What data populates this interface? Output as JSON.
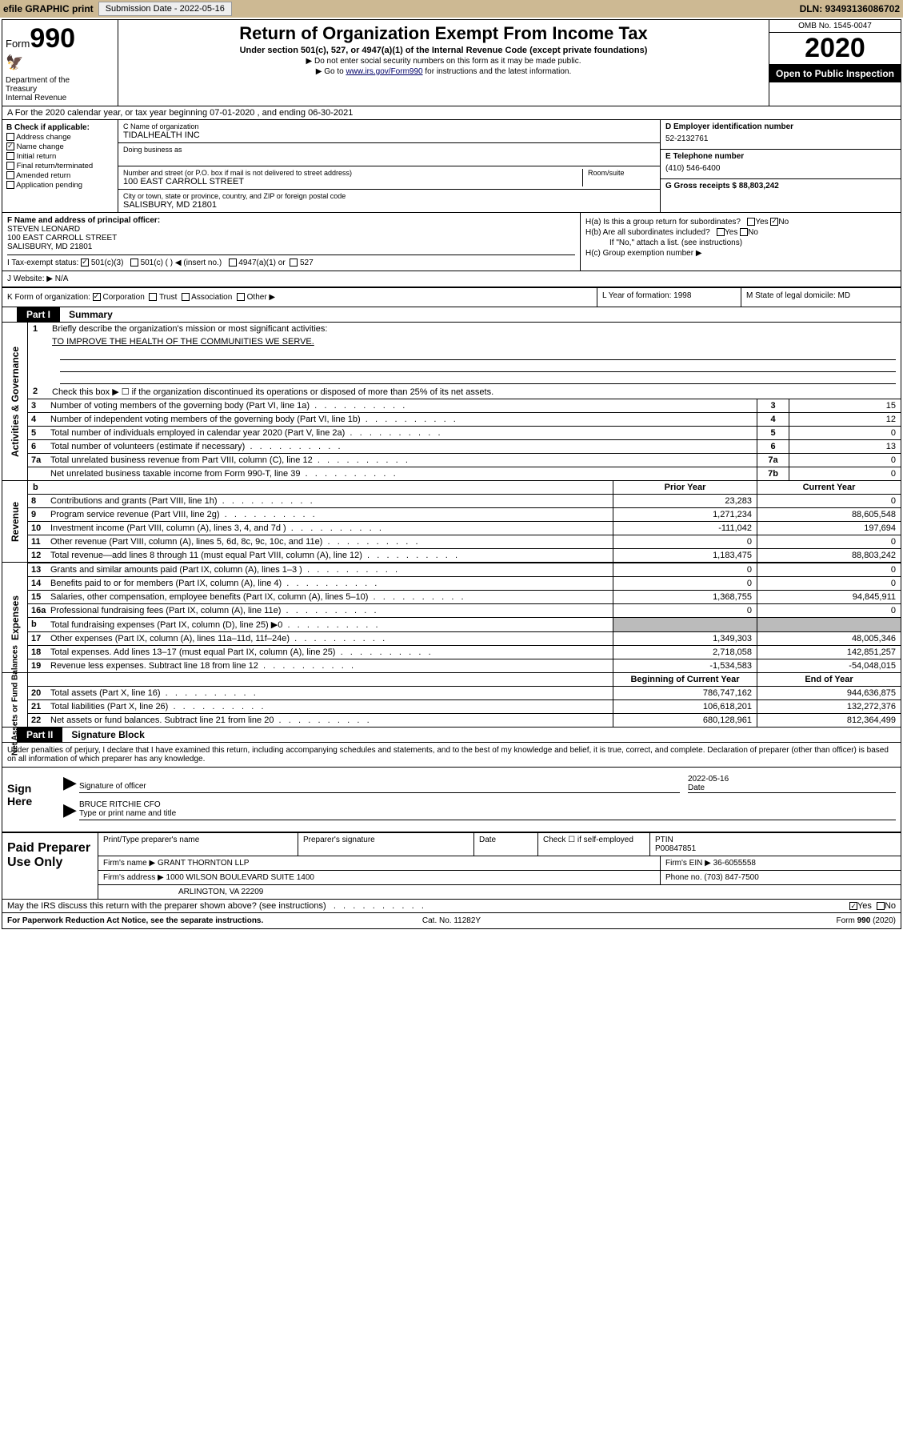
{
  "topbar": {
    "efile": "efile GRAPHIC print",
    "subdate_label": "Submission Date - 2022-05-16",
    "dln_label": "DLN: 93493136086702"
  },
  "header": {
    "form_word": "Form",
    "form_num": "990",
    "dept": "Department of the Treasury\nInternal Revenue",
    "title": "Return of Organization Exempt From Income Tax",
    "subtitle": "Under section 501(c), 527, or 4947(a)(1) of the Internal Revenue Code (except private foundations)",
    "line1": "▶ Do not enter social security numbers on this form as it may be made public.",
    "line2_pre": "▶ Go to ",
    "line2_link": "www.irs.gov/Form990",
    "line2_post": " for instructions and the latest information.",
    "omb": "OMB No. 1545-0047",
    "year": "2020",
    "pub": "Open to Public Inspection"
  },
  "rowA": "A   For the 2020 calendar year, or tax year beginning 07-01-2020   , and ending 06-30-2021",
  "colB": {
    "hdr": "B Check if applicable:",
    "items": [
      "Address change",
      "Name change",
      "Initial return",
      "Final return/terminated",
      "Amended return",
      "Application pending"
    ],
    "checked_idx": 1
  },
  "colC": {
    "name_lbl": "C Name of organization",
    "name_val": "TIDALHEALTH INC",
    "dba_lbl": "Doing business as",
    "addr_lbl": "Number and street (or P.O. box if mail is not delivered to street address)",
    "room_lbl": "Room/suite",
    "addr_val": "100 EAST CARROLL STREET",
    "city_lbl": "City or town, state or province, country, and ZIP or foreign postal code",
    "city_val": "SALISBURY, MD  21801"
  },
  "colD": {
    "ein_lbl": "D Employer identification number",
    "ein_val": "52-2132761",
    "tel_lbl": "E Telephone number",
    "tel_val": "(410) 546-6400",
    "gross_lbl": "G Gross receipts $ 88,803,242"
  },
  "secF": {
    "lbl": "F Name and address of principal officer:",
    "name": "STEVEN LEONARD",
    "addr1": "100 EAST CARROLL STREET",
    "addr2": "SALISBURY, MD  21801"
  },
  "secH": {
    "ha": "H(a)  Is this a group return for subordinates?",
    "hb": "H(b)  Are all subordinates included?",
    "hb_note": "If \"No,\" attach a list. (see instructions)",
    "hc": "H(c)  Group exemption number ▶"
  },
  "rowI": "I   Tax-exempt status:",
  "rowI_opts": [
    "501(c)(3)",
    "501(c) (  ) ◀ (insert no.)",
    "4947(a)(1) or",
    "527"
  ],
  "rowJ": "J   Website: ▶  N/A",
  "rowK": "K Form of organization:",
  "rowK_opts": [
    "Corporation",
    "Trust",
    "Association",
    "Other ▶"
  ],
  "rowL_lbl": "L Year of formation:",
  "rowL_val": "1998",
  "rowM_lbl": "M State of legal domicile:",
  "rowM_val": "MD",
  "part1": {
    "hdr": "Part I",
    "title": "Summary",
    "q1_lbl": "Briefly describe the organization's mission or most significant activities:",
    "q1_val": "TO IMPROVE THE HEALTH OF THE COMMUNITIES WE SERVE.",
    "q2": "Check this box ▶ ☐  if the organization discontinued its operations or disposed of more than 25% of its net assets.",
    "lines_short": [
      {
        "n": "3",
        "t": "Number of voting members of the governing body (Part VI, line 1a)",
        "box": "3",
        "v": "15"
      },
      {
        "n": "4",
        "t": "Number of independent voting members of the governing body (Part VI, line 1b)",
        "box": "4",
        "v": "12"
      },
      {
        "n": "5",
        "t": "Total number of individuals employed in calendar year 2020 (Part V, line 2a)",
        "box": "5",
        "v": "0"
      },
      {
        "n": "6",
        "t": "Total number of volunteers (estimate if necessary)",
        "box": "6",
        "v": "13"
      },
      {
        "n": "7a",
        "t": "Total unrelated business revenue from Part VIII, column (C), line 12",
        "box": "7a",
        "v": "0"
      },
      {
        "n": "",
        "t": "Net unrelated business taxable income from Form 990-T, line 39",
        "box": "7b",
        "v": "0"
      }
    ],
    "col_hdr1": "Prior Year",
    "col_hdr2": "Current Year",
    "rev_lines": [
      {
        "n": "8",
        "t": "Contributions and grants (Part VIII, line 1h)",
        "c1": "23,283",
        "c2": "0"
      },
      {
        "n": "9",
        "t": "Program service revenue (Part VIII, line 2g)",
        "c1": "1,271,234",
        "c2": "88,605,548"
      },
      {
        "n": "10",
        "t": "Investment income (Part VIII, column (A), lines 3, 4, and 7d )",
        "c1": "-111,042",
        "c2": "197,694"
      },
      {
        "n": "11",
        "t": "Other revenue (Part VIII, column (A), lines 5, 6d, 8c, 9c, 10c, and 11e)",
        "c1": "0",
        "c2": "0"
      },
      {
        "n": "12",
        "t": "Total revenue—add lines 8 through 11 (must equal Part VIII, column (A), line 12)",
        "c1": "1,183,475",
        "c2": "88,803,242"
      }
    ],
    "exp_lines": [
      {
        "n": "13",
        "t": "Grants and similar amounts paid (Part IX, column (A), lines 1–3 )",
        "c1": "0",
        "c2": "0"
      },
      {
        "n": "14",
        "t": "Benefits paid to or for members (Part IX, column (A), line 4)",
        "c1": "0",
        "c2": "0"
      },
      {
        "n": "15",
        "t": "Salaries, other compensation, employee benefits (Part IX, column (A), lines 5–10)",
        "c1": "1,368,755",
        "c2": "94,845,911"
      },
      {
        "n": "16a",
        "t": "Professional fundraising fees (Part IX, column (A), line 11e)",
        "c1": "0",
        "c2": "0"
      },
      {
        "n": "b",
        "t": "Total fundraising expenses (Part IX, column (D), line 25) ▶0",
        "c1": "shaded",
        "c2": "shaded"
      },
      {
        "n": "17",
        "t": "Other expenses (Part IX, column (A), lines 11a–11d, 11f–24e)",
        "c1": "1,349,303",
        "c2": "48,005,346"
      },
      {
        "n": "18",
        "t": "Total expenses. Add lines 13–17 (must equal Part IX, column (A), line 25)",
        "c1": "2,718,058",
        "c2": "142,851,257"
      },
      {
        "n": "19",
        "t": "Revenue less expenses. Subtract line 18 from line 12",
        "c1": "-1,534,583",
        "c2": "-54,048,015"
      }
    ],
    "na_hdr1": "Beginning of Current Year",
    "na_hdr2": "End of Year",
    "na_lines": [
      {
        "n": "20",
        "t": "Total assets (Part X, line 16)",
        "c1": "786,747,162",
        "c2": "944,636,875"
      },
      {
        "n": "21",
        "t": "Total liabilities (Part X, line 26)",
        "c1": "106,618,201",
        "c2": "132,272,376"
      },
      {
        "n": "22",
        "t": "Net assets or fund balances. Subtract line 21 from line 20",
        "c1": "680,128,961",
        "c2": "812,364,499"
      }
    ],
    "vlabel_gov": "Activities & Governance",
    "vlabel_rev": "Revenue",
    "vlabel_exp": "Expenses",
    "vlabel_na": "Net Assets or Fund Balances"
  },
  "part2": {
    "hdr": "Part II",
    "title": "Signature Block",
    "decl": "Under penalties of perjury, I declare that I have examined this return, including accompanying schedules and statements, and to the best of my knowledge and belief, it is true, correct, and complete. Declaration of preparer (other than officer) is based on all information of which preparer has any knowledge.",
    "sign_here": "Sign Here",
    "sig_of_officer": "Signature of officer",
    "sig_date": "2022-05-16",
    "date_lbl": "Date",
    "officer_name": "BRUCE RITCHIE CFO",
    "type_name_lbl": "Type or print name and title",
    "paid_hdr": "Paid Preparer Use Only",
    "prep_name_lbl": "Print/Type preparer's name",
    "prep_sig_lbl": "Preparer's signature",
    "prep_date_lbl": "Date",
    "check_self": "Check ☐ if self-employed",
    "ptin_lbl": "PTIN",
    "ptin_val": "P00847851",
    "firm_name_lbl": "Firm's name   ▶",
    "firm_name_val": "GRANT THORNTON LLP",
    "firm_ein_lbl": "Firm's EIN ▶",
    "firm_ein_val": "36-6055558",
    "firm_addr_lbl": "Firm's address ▶",
    "firm_addr_val1": "1000 WILSON BOULEVARD SUITE 1400",
    "firm_addr_val2": "ARLINGTON, VA  22209",
    "phone_lbl": "Phone no.",
    "phone_val": "(703) 847-7500",
    "discuss": "May the IRS discuss this return with the preparer shown above? (see instructions)"
  },
  "footer": {
    "left": "For Paperwork Reduction Act Notice, see the separate instructions.",
    "mid": "Cat. No. 11282Y",
    "right": "Form 990 (2020)"
  },
  "colors": {
    "topbar_bg": "#cdb993",
    "black": "#000000",
    "shaded": "#bbbbbb",
    "link": "#000066"
  }
}
